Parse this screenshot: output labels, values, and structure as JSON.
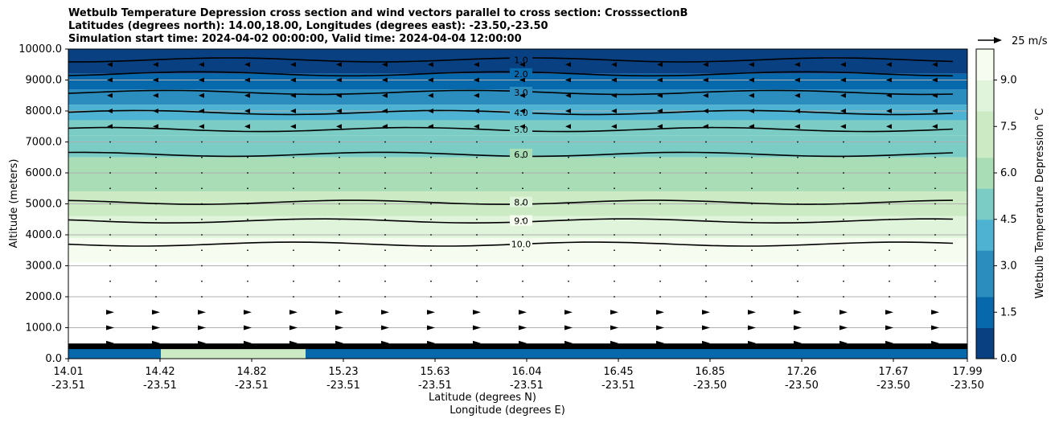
{
  "chart_data": {
    "type": "contour",
    "title_lines": [
      "Wetbulb Temperature Depression cross section and wind vectors parallel to cross section: CrosssectionB",
      "Latitudes (degrees north): 14.00,18.00, Longitudes (degrees east): -23.50,-23.50",
      "Simulation start time: 2024-04-02 00:00:00, Valid time: 2024-04-04 12:00:00"
    ],
    "ylabel": "Altitude (meters)",
    "xlabel_lat": "Latitude (degrees N)",
    "xlabel_lon": "Longitude (degrees E)",
    "ylim": [
      0,
      10000
    ],
    "y_ticks": [
      "0.0",
      "1000.0",
      "2000.0",
      "3000.0",
      "4000.0",
      "5000.0",
      "6000.0",
      "7000.0",
      "8000.0",
      "9000.0",
      "10000.0"
    ],
    "x_ticks": [
      {
        "lat": "14.01",
        "lon": "-23.51"
      },
      {
        "lat": "14.42",
        "lon": "-23.51"
      },
      {
        "lat": "14.82",
        "lon": "-23.51"
      },
      {
        "lat": "15.23",
        "lon": "-23.51"
      },
      {
        "lat": "15.63",
        "lon": "-23.51"
      },
      {
        "lat": "16.04",
        "lon": "-23.51"
      },
      {
        "lat": "16.45",
        "lon": "-23.51"
      },
      {
        "lat": "16.85",
        "lon": "-23.50"
      },
      {
        "lat": "17.26",
        "lon": "-23.50"
      },
      {
        "lat": "17.67",
        "lon": "-23.50"
      },
      {
        "lat": "17.99",
        "lon": "-23.50"
      }
    ],
    "colorbar": {
      "label": "Wetbulb Temperature Depression °C",
      "min": 0.0,
      "max": 10.0,
      "ticks": [
        "0.0",
        "1.5",
        "3.0",
        "4.5",
        "6.0",
        "7.5",
        "9.0"
      ],
      "colors": [
        "#084081",
        "#0868ac",
        "#2b8cbe",
        "#4eb3d3",
        "#7bccc4",
        "#a8ddb5",
        "#ccebc5",
        "#e0f3db",
        "#f7fcf0"
      ]
    },
    "wind_key": "25 m/s",
    "contour_labels": [
      "1.0",
      "2.0",
      "3.0",
      "4.0",
      "5.0",
      "6.0",
      "8.0",
      "9.0",
      "10.0"
    ],
    "fill_bands_m": [
      {
        "bottom": 9200,
        "top": 10000,
        "value": 0.5
      },
      {
        "bottom": 8700,
        "top": 9200,
        "value": 1.5
      },
      {
        "bottom": 8200,
        "top": 8700,
        "value": 2.5
      },
      {
        "bottom": 7700,
        "top": 8200,
        "value": 3.5
      },
      {
        "bottom": 7200,
        "top": 7700,
        "value": 4.5
      },
      {
        "bottom": 6500,
        "top": 7200,
        "value": 5.5
      },
      {
        "bottom": 5400,
        "top": 6500,
        "value": 6.5
      },
      {
        "bottom": 4600,
        "top": 5400,
        "value": 7.5
      },
      {
        "bottom": 3900,
        "top": 4600,
        "value": 8.5
      },
      {
        "bottom": 3100,
        "top": 3900,
        "value": 9.5
      }
    ],
    "contour_levels_m": [
      {
        "level": "1.0",
        "alt": 9650
      },
      {
        "level": "2.0",
        "alt": 9200
      },
      {
        "level": "3.0",
        "alt": 8600
      },
      {
        "level": "4.0",
        "alt": 7950
      },
      {
        "level": "5.0",
        "alt": 7400
      },
      {
        "level": "6.0",
        "alt": 6600
      },
      {
        "level": "8.0",
        "alt": 5050
      },
      {
        "level": "9.0",
        "alt": 4450
      },
      {
        "level": "10.0",
        "alt": 3700
      }
    ]
  }
}
